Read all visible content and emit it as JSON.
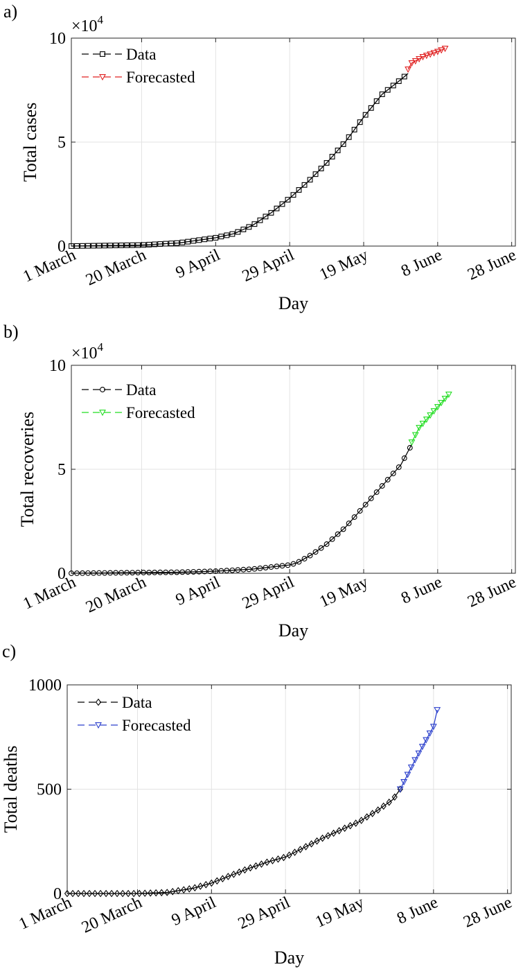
{
  "chart_data": [
    {
      "panel_label": "a)",
      "type": "line",
      "ylabel": "Total cases",
      "xlabel": "Day",
      "exponent_base": "×10",
      "exponent_power": "4",
      "ylim": [
        0,
        10
      ],
      "yticks": [
        0,
        5,
        10
      ],
      "ytick_labels": [
        "0",
        "5",
        "10"
      ],
      "xlim": [
        1,
        121
      ],
      "xticks": [
        1,
        20,
        40,
        60,
        80,
        100,
        120
      ],
      "xtick_labels": [
        "1 March",
        "20 March",
        "9 April",
        "29 April",
        "19 May",
        "8 June",
        "28 June"
      ],
      "grid": true,
      "legend": "top-left",
      "series": [
        {
          "name": "Data",
          "color": "#000000",
          "marker": "square",
          "anchors": [
            [
              1,
              0
            ],
            [
              20,
              0.05
            ],
            [
              30,
              0.15
            ],
            [
              40,
              0.4
            ],
            [
              45,
              0.6
            ],
            [
              50,
              1.0
            ],
            [
              55,
              1.6
            ],
            [
              60,
              2.3
            ],
            [
              65,
              3.1
            ],
            [
              70,
              4.0
            ],
            [
              75,
              5.0
            ],
            [
              80,
              6.2
            ],
            [
              85,
              7.3
            ],
            [
              90,
              8.0
            ],
            [
              92,
              8.3
            ]
          ]
        },
        {
          "name": "Forecasted",
          "color": "#e02020",
          "marker": "triangle-down",
          "anchors": [
            [
              92,
              8.5
            ],
            [
              93,
              8.8
            ],
            [
              96,
              9.1
            ],
            [
              100,
              9.35
            ],
            [
              102,
              9.5
            ]
          ]
        }
      ]
    },
    {
      "panel_label": "b)",
      "type": "line",
      "ylabel": "Total recoveries",
      "xlabel": "Day",
      "exponent_base": "×10",
      "exponent_power": "4",
      "ylim": [
        0,
        10
      ],
      "yticks": [
        0,
        5,
        10
      ],
      "ytick_labels": [
        "0",
        "5",
        "10"
      ],
      "xlim": [
        1,
        121
      ],
      "xticks": [
        1,
        20,
        40,
        60,
        80,
        100,
        120
      ],
      "xtick_labels": [
        "1 March",
        "20 March",
        "9 April",
        "29 April",
        "19 May",
        "8 June",
        "28 June"
      ],
      "grid": true,
      "legend": "top-left",
      "series": [
        {
          "name": "Data",
          "color": "#000000",
          "marker": "circle",
          "anchors": [
            [
              1,
              0
            ],
            [
              30,
              0.05
            ],
            [
              40,
              0.1
            ],
            [
              50,
              0.2
            ],
            [
              60,
              0.4
            ],
            [
              62,
              0.5
            ],
            [
              66,
              0.9
            ],
            [
              70,
              1.4
            ],
            [
              75,
              2.2
            ],
            [
              80,
              3.2
            ],
            [
              85,
              4.2
            ],
            [
              90,
              5.2
            ],
            [
              93,
              6.2
            ]
          ]
        },
        {
          "name": "Forecasted",
          "color": "#22dd22",
          "marker": "triangle-down",
          "anchors": [
            [
              93,
              6.3
            ],
            [
              95,
              7.0
            ],
            [
              98,
              7.6
            ],
            [
              100,
              8.0
            ],
            [
              103,
              8.6
            ]
          ]
        }
      ]
    },
    {
      "panel_label": "c)",
      "type": "line",
      "ylabel": "Total deaths",
      "xlabel": "Day",
      "ylim": [
        0,
        1000
      ],
      "yticks": [
        0,
        500,
        1000
      ],
      "ytick_labels": [
        "0",
        "500",
        "1000"
      ],
      "xlim": [
        1,
        121
      ],
      "xticks": [
        1,
        20,
        40,
        60,
        80,
        100,
        120
      ],
      "xtick_labels": [
        "1 March",
        "20 March",
        "9 April",
        "29 April",
        "19 May",
        "8 June",
        "28 June"
      ],
      "grid": true,
      "legend": "top-left",
      "series": [
        {
          "name": "Data",
          "color": "#000000",
          "marker": "diamond",
          "anchors": [
            [
              1,
              0
            ],
            [
              20,
              0
            ],
            [
              28,
              5
            ],
            [
              35,
              25
            ],
            [
              40,
              50
            ],
            [
              45,
              85
            ],
            [
              50,
              120
            ],
            [
              55,
              150
            ],
            [
              60,
              175
            ],
            [
              65,
              220
            ],
            [
              70,
              265
            ],
            [
              75,
              305
            ],
            [
              80,
              345
            ],
            [
              85,
              400
            ],
            [
              89,
              450
            ],
            [
              91,
              500
            ]
          ]
        },
        {
          "name": "Forecasted",
          "color": "#2a3fcc",
          "marker": "triangle-down",
          "anchors": [
            [
              91,
              500
            ],
            [
              95,
              640
            ],
            [
              100,
              800
            ],
            [
              101,
              880
            ]
          ]
        }
      ]
    }
  ]
}
